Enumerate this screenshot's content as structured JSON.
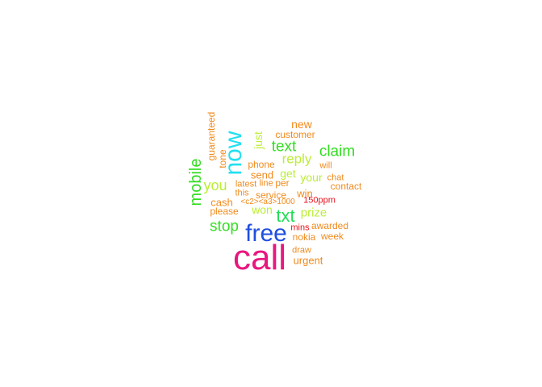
{
  "words": [
    {
      "text": "call",
      "color": "#e8177f"
    },
    {
      "text": "free",
      "color": "#1f4fe0"
    },
    {
      "text": "now",
      "color": "#22e0f0"
    },
    {
      "text": "txt",
      "color": "#22dd55"
    },
    {
      "text": "mobile",
      "color": "#33dd22"
    },
    {
      "text": "claim",
      "color": "#33dd22"
    },
    {
      "text": "text",
      "color": "#33dd22"
    },
    {
      "text": "stop",
      "color": "#33dd22"
    },
    {
      "text": "reply",
      "color": "#bbee33"
    },
    {
      "text": "prize",
      "color": "#bbee33"
    },
    {
      "text": "you",
      "color": "#bbee33"
    },
    {
      "text": "just",
      "color": "#bbee33"
    },
    {
      "text": "get",
      "color": "#bbee33"
    },
    {
      "text": "won",
      "color": "#bbee33"
    },
    {
      "text": "your",
      "color": "#bbee33"
    },
    {
      "text": "new",
      "color": "#f08a1c"
    },
    {
      "text": "customer",
      "color": "#f08a1c"
    },
    {
      "text": "guaranteed",
      "color": "#f08a1c"
    },
    {
      "text": "tone",
      "color": "#f08a1c"
    },
    {
      "text": "phone",
      "color": "#f08a1c"
    },
    {
      "text": "will",
      "color": "#f08a1c"
    },
    {
      "text": "send",
      "color": "#f08a1c"
    },
    {
      "text": "chat",
      "color": "#f08a1c"
    },
    {
      "text": "latest",
      "color": "#f08a1c"
    },
    {
      "text": "line",
      "color": "#f08a1c"
    },
    {
      "text": "per",
      "color": "#f08a1c"
    },
    {
      "text": "contact",
      "color": "#f08a1c"
    },
    {
      "text": "this",
      "color": "#f08a1c"
    },
    {
      "text": "service",
      "color": "#f08a1c"
    },
    {
      "text": "win",
      "color": "#f08a1c"
    },
    {
      "text": "cash",
      "color": "#f08a1c"
    },
    {
      "text": "<c2><a3>1000",
      "color": "#f08a1c"
    },
    {
      "text": "150ppm",
      "color": "#e8101a"
    },
    {
      "text": "please",
      "color": "#f08a1c"
    },
    {
      "text": "awarded",
      "color": "#f08a1c"
    },
    {
      "text": "mins",
      "color": "#e8101a"
    },
    {
      "text": "nokia",
      "color": "#f08a1c"
    },
    {
      "text": "week",
      "color": "#f08a1c"
    },
    {
      "text": "draw",
      "color": "#f08a1c"
    },
    {
      "text": "urgent",
      "color": "#f08a1c"
    }
  ]
}
